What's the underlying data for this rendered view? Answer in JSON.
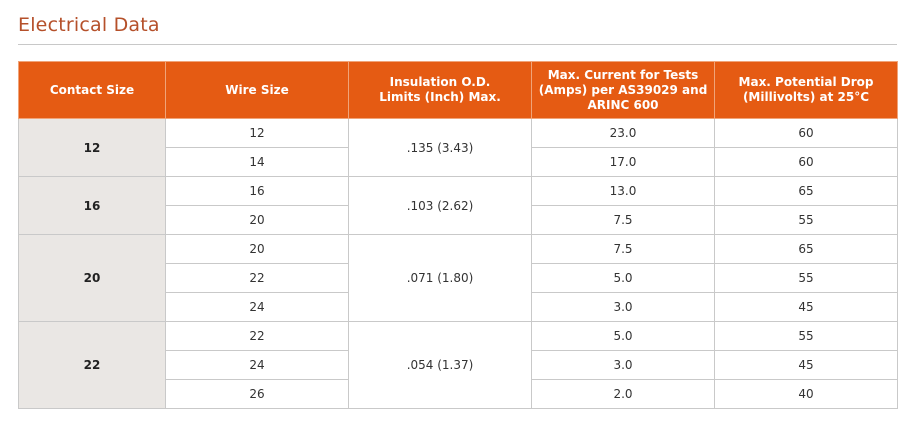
{
  "title": "Electrical Data",
  "table": {
    "headers": [
      "Contact Size",
      "Wire Size",
      "Insulation O.D.\nLimits (Inch) Max.",
      "Max. Current for Tests\n(Amps) per AS39029 and\nARINC 600",
      "Max. Potential Drop\n(Millivolts) at 25°C"
    ],
    "groups": [
      {
        "contact_size": "12",
        "insulation": ".135 (3.43)",
        "rows": [
          {
            "wire": "12",
            "current": "23.0",
            "drop": "60"
          },
          {
            "wire": "14",
            "current": "17.0",
            "drop": "60"
          }
        ]
      },
      {
        "contact_size": "16",
        "insulation": ".103 (2.62)",
        "rows": [
          {
            "wire": "16",
            "current": "13.0",
            "drop": "65"
          },
          {
            "wire": "20",
            "current": "7.5",
            "drop": "55"
          }
        ]
      },
      {
        "contact_size": "20",
        "insulation": ".071 (1.80)",
        "rows": [
          {
            "wire": "20",
            "current": "7.5",
            "drop": "65"
          },
          {
            "wire": "22",
            "current": "5.0",
            "drop": "55"
          },
          {
            "wire": "24",
            "current": "3.0",
            "drop": "45"
          }
        ]
      },
      {
        "contact_size": "22",
        "insulation": ".054 (1.37)",
        "rows": [
          {
            "wire": "22",
            "current": "5.0",
            "drop": "55"
          },
          {
            "wire": "24",
            "current": "3.0",
            "drop": "45"
          },
          {
            "wire": "26",
            "current": "2.0",
            "drop": "40"
          }
        ]
      }
    ]
  },
  "colors": {
    "title": "#b5502a",
    "header_bg": "#e55b13",
    "contact_size_bg": "#eae7e4",
    "border": "#c9c9c9"
  }
}
